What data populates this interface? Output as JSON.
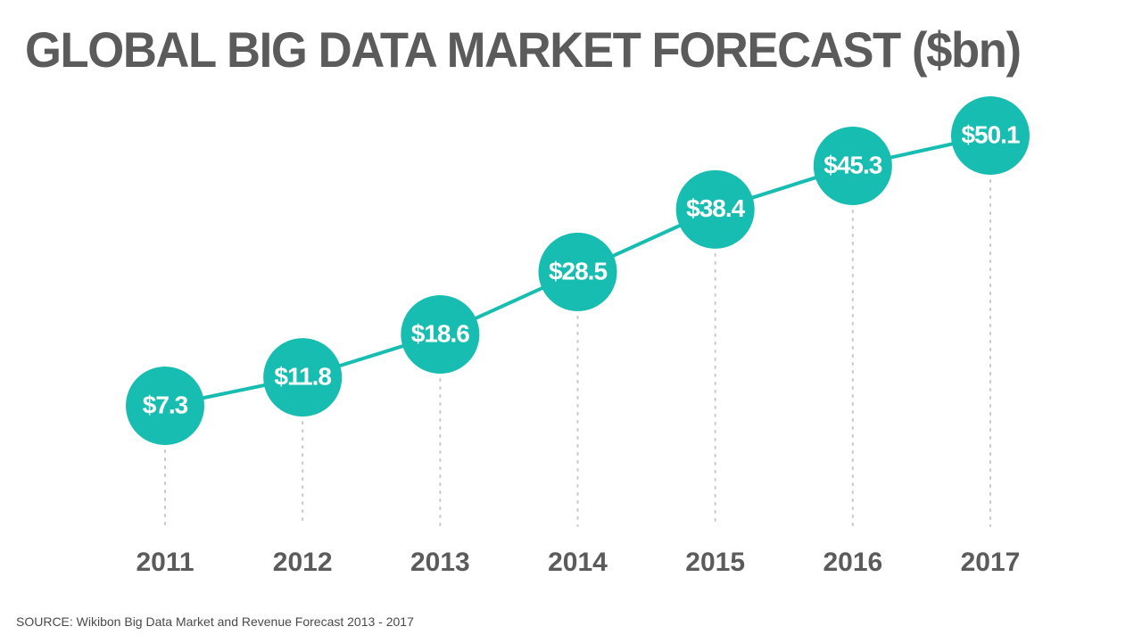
{
  "chart_data": {
    "type": "line",
    "title": "GLOBAL BIG DATA MARKET FORECAST ($bn)",
    "xlabel": "",
    "ylabel": "",
    "categories": [
      "2011",
      "2012",
      "2013",
      "2014",
      "2015",
      "2016",
      "2017"
    ],
    "values": [
      7.3,
      11.8,
      18.6,
      28.5,
      38.4,
      45.3,
      50.1
    ],
    "data_labels": [
      "$7.3",
      "$11.8",
      "$18.6",
      "$28.5",
      "$38.4",
      "$45.3",
      "$50.1"
    ],
    "ylim": [
      0,
      55
    ],
    "grid": false,
    "legend": "none",
    "source": "SOURCE: Wikibon Big Data Market and Revenue Forecast 2013 - 2017",
    "colors": {
      "marker": "#17bdb0",
      "line": "#17bdb0",
      "title": "#5b5b5b",
      "axis_text": "#5b5b5b",
      "dotted_guide": "#c8c8c8",
      "value_text": "#ffffff"
    }
  }
}
